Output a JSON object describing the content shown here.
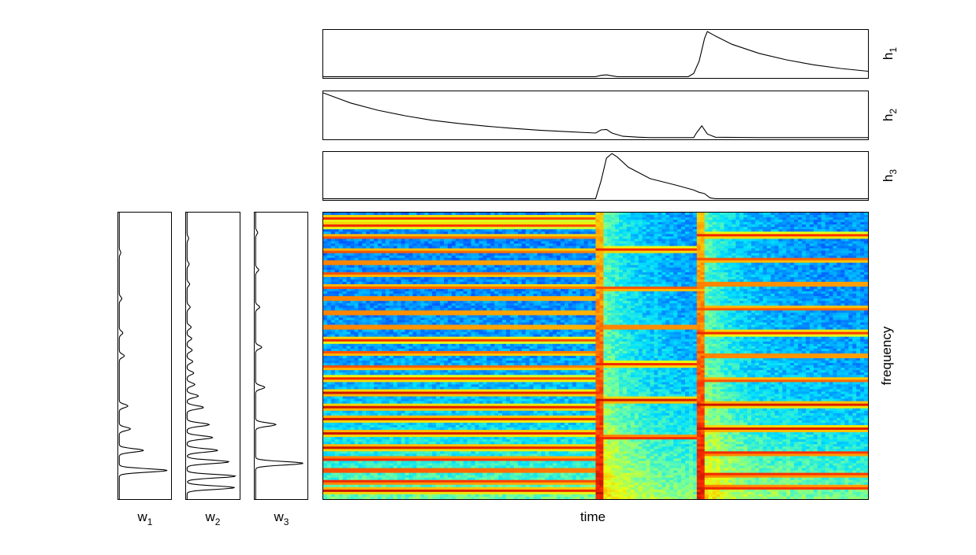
{
  "chart_data": {
    "type": "heatmap",
    "description_free": true,
    "main": {
      "xlabel": "time",
      "ylabel": "frequency",
      "colormap": [
        "#00008f",
        "#0000ff",
        "#0070ff",
        "#00e0ff",
        "#70ffa0",
        "#e8ff10",
        "#ffb000",
        "#ff3000",
        "#a00000"
      ],
      "onsets": [
        0.5,
        0.685
      ],
      "bands_segment1": [
        0.02,
        0.045,
        0.085,
        0.135,
        0.175,
        0.215,
        0.26,
        0.3,
        0.35,
        0.4,
        0.445,
        0.49,
        0.54,
        0.58,
        0.63,
        0.68,
        0.72,
        0.77,
        0.82,
        0.86,
        0.9,
        0.94,
        0.97
      ],
      "bands_segment2": [
        0.13,
        0.265,
        0.4,
        0.53,
        0.655,
        0.785
      ],
      "bands_segment3": [
        0.08,
        0.165,
        0.25,
        0.335,
        0.42,
        0.5,
        0.585,
        0.67,
        0.755,
        0.84,
        0.915,
        0.96
      ]
    },
    "activations": [
      {
        "name_main": "h",
        "name_sub": "1",
        "points": [
          [
            0.0,
            0.01
          ],
          [
            0.5,
            0.01
          ],
          [
            0.51,
            0.04
          ],
          [
            0.52,
            0.05
          ],
          [
            0.53,
            0.03
          ],
          [
            0.54,
            0.01
          ],
          [
            0.67,
            0.01
          ],
          [
            0.68,
            0.08
          ],
          [
            0.69,
            0.35
          ],
          [
            0.7,
            0.85
          ],
          [
            0.705,
            1.0
          ],
          [
            0.72,
            0.9
          ],
          [
            0.75,
            0.72
          ],
          [
            0.8,
            0.52
          ],
          [
            0.85,
            0.38
          ],
          [
            0.9,
            0.27
          ],
          [
            0.95,
            0.19
          ],
          [
            1.0,
            0.13
          ]
        ]
      },
      {
        "name_main": "h",
        "name_sub": "2",
        "points": [
          [
            0.0,
            1.0
          ],
          [
            0.05,
            0.78
          ],
          [
            0.1,
            0.62
          ],
          [
            0.15,
            0.5
          ],
          [
            0.2,
            0.4
          ],
          [
            0.25,
            0.33
          ],
          [
            0.3,
            0.27
          ],
          [
            0.35,
            0.22
          ],
          [
            0.4,
            0.18
          ],
          [
            0.45,
            0.15
          ],
          [
            0.5,
            0.12
          ],
          [
            0.51,
            0.19
          ],
          [
            0.52,
            0.2
          ],
          [
            0.53,
            0.12
          ],
          [
            0.55,
            0.05
          ],
          [
            0.58,
            0.03
          ],
          [
            0.6,
            0.02
          ],
          [
            0.68,
            0.02
          ],
          [
            0.685,
            0.12
          ],
          [
            0.695,
            0.28
          ],
          [
            0.705,
            0.1
          ],
          [
            0.72,
            0.03
          ],
          [
            0.8,
            0.02
          ],
          [
            1.0,
            0.02
          ]
        ]
      },
      {
        "name_main": "h",
        "name_sub": "3",
        "points": [
          [
            0.0,
            0.01
          ],
          [
            0.5,
            0.01
          ],
          [
            0.51,
            0.4
          ],
          [
            0.52,
            0.9
          ],
          [
            0.53,
            1.0
          ],
          [
            0.54,
            0.92
          ],
          [
            0.56,
            0.7
          ],
          [
            0.6,
            0.45
          ],
          [
            0.65,
            0.3
          ],
          [
            0.68,
            0.2
          ],
          [
            0.69,
            0.15
          ],
          [
            0.7,
            0.12
          ],
          [
            0.71,
            0.03
          ],
          [
            0.72,
            0.01
          ],
          [
            1.0,
            0.01
          ]
        ]
      }
    ],
    "templates": [
      {
        "name_main": "w",
        "name_sub": "1",
        "peaks": [
          [
            0.9,
            0.95
          ],
          [
            0.83,
            0.48
          ],
          [
            0.755,
            0.22
          ],
          [
            0.675,
            0.17
          ],
          [
            0.5,
            0.1
          ],
          [
            0.42,
            0.07
          ],
          [
            0.3,
            0.05
          ],
          [
            0.14,
            0.03
          ]
        ]
      },
      {
        "name_main": "w",
        "name_sub": "2",
        "peaks": [
          [
            0.96,
            0.93
          ],
          [
            0.92,
            0.95
          ],
          [
            0.87,
            0.82
          ],
          [
            0.83,
            0.6
          ],
          [
            0.785,
            0.5
          ],
          [
            0.74,
            0.43
          ],
          [
            0.68,
            0.32
          ],
          [
            0.64,
            0.22
          ],
          [
            0.6,
            0.15
          ],
          [
            0.56,
            0.13
          ],
          [
            0.52,
            0.11
          ],
          [
            0.48,
            0.1
          ],
          [
            0.44,
            0.09
          ],
          [
            0.4,
            0.08
          ],
          [
            0.33,
            0.06
          ],
          [
            0.25,
            0.05
          ],
          [
            0.18,
            0.04
          ],
          [
            0.09,
            0.03
          ]
        ]
      },
      {
        "name_main": "w",
        "name_sub": "3",
        "peaks": [
          [
            0.875,
            0.95
          ],
          [
            0.74,
            0.4
          ],
          [
            0.61,
            0.18
          ],
          [
            0.47,
            0.12
          ],
          [
            0.33,
            0.08
          ],
          [
            0.2,
            0.06
          ],
          [
            0.07,
            0.04
          ]
        ]
      }
    ]
  }
}
